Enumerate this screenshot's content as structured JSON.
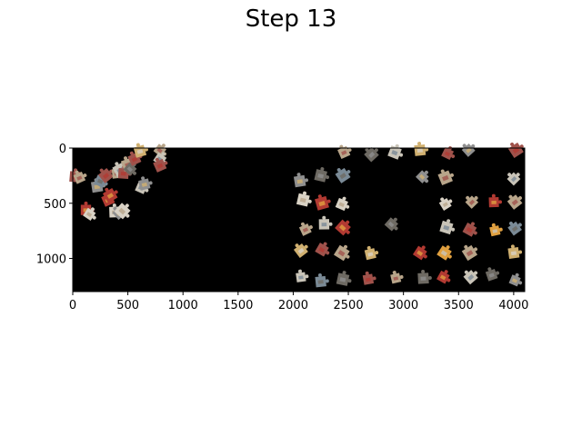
{
  "figure": {
    "title": "Step 13"
  },
  "board": {
    "background": "#000000",
    "x_range": [
      0,
      4100
    ],
    "y_range": [
      0,
      1300
    ],
    "y_inverted": true,
    "x_ticks": [
      "0",
      "500",
      "1000",
      "1500",
      "2000",
      "2500",
      "3000",
      "3500",
      "4000"
    ],
    "y_ticks": [
      "0",
      "500",
      "1000"
    ],
    "piece_colors": [
      "#b8a58a",
      "#8f8f8f",
      "#c9c4b8",
      "#a0524b",
      "#d0b070",
      "#7a8a96",
      "#b23a32",
      "#d9d2c5",
      "#6e6a63",
      "#e0a040"
    ]
  },
  "pieces": {
    "assembled_cluster": [
      [
        20,
        260,
        3
      ],
      [
        60,
        270,
        0
      ],
      [
        120,
        560,
        6
      ],
      [
        150,
        600,
        7
      ],
      [
        220,
        350,
        1
      ],
      [
        250,
        300,
        5
      ],
      [
        300,
        250,
        3
      ],
      [
        320,
        470,
        6
      ],
      [
        340,
        430,
        6
      ],
      [
        380,
        580,
        7
      ],
      [
        420,
        590,
        1
      ],
      [
        450,
        570,
        7
      ],
      [
        400,
        230,
        0
      ],
      [
        430,
        200,
        2
      ],
      [
        460,
        230,
        3
      ],
      [
        500,
        150,
        0
      ],
      [
        520,
        190,
        8
      ],
      [
        560,
        100,
        3
      ],
      [
        610,
        30,
        4
      ],
      [
        620,
        360,
        2
      ],
      [
        650,
        330,
        1
      ],
      [
        790,
        20,
        0
      ],
      [
        790,
        100,
        2
      ],
      [
        790,
        160,
        3
      ]
    ],
    "loose": [
      [
        2060,
        300,
        1
      ],
      [
        2090,
        470,
        7
      ],
      [
        2110,
        740,
        0
      ],
      [
        2070,
        930,
        4
      ],
      [
        2070,
        1170,
        2
      ],
      [
        2250,
        250,
        8
      ],
      [
        2260,
        500,
        6
      ],
      [
        2280,
        690,
        2
      ],
      [
        2260,
        920,
        3
      ],
      [
        2250,
        1210,
        5
      ],
      [
        2460,
        40,
        0
      ],
      [
        2450,
        250,
        5
      ],
      [
        2440,
        510,
        7
      ],
      [
        2450,
        720,
        6
      ],
      [
        2440,
        950,
        0
      ],
      [
        2450,
        1190,
        8
      ],
      [
        2710,
        60,
        8
      ],
      [
        2700,
        960,
        4
      ],
      [
        2680,
        1190,
        3
      ],
      [
        2920,
        40,
        2
      ],
      [
        2890,
        690,
        8
      ],
      [
        2930,
        1180,
        0
      ],
      [
        3150,
        20,
        4
      ],
      [
        3170,
        260,
        1
      ],
      [
        3150,
        950,
        6
      ],
      [
        3180,
        1180,
        8
      ],
      [
        3400,
        50,
        3
      ],
      [
        3380,
        270,
        0
      ],
      [
        3380,
        510,
        7
      ],
      [
        3390,
        720,
        2
      ],
      [
        3370,
        950,
        9
      ],
      [
        3360,
        1170,
        6
      ],
      [
        3590,
        20,
        1
      ],
      [
        3620,
        490,
        0
      ],
      [
        3600,
        740,
        3
      ],
      [
        3600,
        950,
        0
      ],
      [
        3610,
        1170,
        2
      ],
      [
        3820,
        490,
        6
      ],
      [
        3830,
        750,
        9
      ],
      [
        3800,
        1150,
        8
      ],
      [
        4020,
        20,
        3
      ],
      [
        4000,
        280,
        2
      ],
      [
        4010,
        490,
        0
      ],
      [
        4010,
        730,
        5
      ],
      [
        4000,
        950,
        4
      ],
      [
        4010,
        1200,
        1
      ]
    ]
  }
}
